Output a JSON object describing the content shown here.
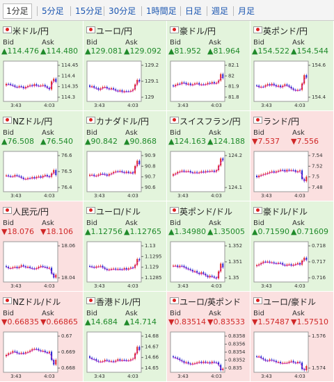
{
  "tabs": [
    "1分足",
    "5分足",
    "15分足",
    "30分足",
    "1時間足",
    "日足",
    "週足",
    "月足"
  ],
  "bid_label": "Bid",
  "ask_label": "Ask",
  "time_labels": [
    "3:43",
    "4:03"
  ],
  "pairs": [
    {
      "name": "米ドル/円",
      "trend": "up",
      "bid": "▲114.476",
      "ask": "▲114.480",
      "ticks": [
        "114.45",
        "114.4",
        "114.35",
        "114.3"
      ]
    },
    {
      "name": "ユーロ/円",
      "trend": "up",
      "bid": "▲129.081",
      "ask": "▲129.092",
      "ticks": [
        "129.2",
        "129.1",
        "129"
      ]
    },
    {
      "name": "豪ドル/円",
      "trend": "up",
      "bid": "▲81.952",
      "ask": "▲81.964",
      "ticks": [
        "82.1",
        "82",
        "81.9",
        "81.8"
      ]
    },
    {
      "name": "英ポンド/円",
      "trend": "up",
      "bid": "▲154.522",
      "ask": "▲154.544",
      "ticks": [
        "154.6",
        "154.4"
      ]
    },
    {
      "name": "NZドル/円",
      "trend": "up",
      "bid": "▲76.508",
      "ask": "▲76.540",
      "ticks": [
        "76.6",
        "76.5",
        "76.4"
      ]
    },
    {
      "name": "カナダドル/円",
      "trend": "up",
      "bid": "▲90.842",
      "ask": "▲90.868",
      "ticks": [
        "90.9",
        "90.8",
        "90.7",
        "90.6"
      ]
    },
    {
      "name": "スイスフラン/円",
      "trend": "up",
      "bid": "▲124.163",
      "ask": "▲124.188",
      "ticks": [
        "124.2",
        "124.1"
      ]
    },
    {
      "name": "ランド/円",
      "trend": "down",
      "bid": "▼7.537",
      "ask": "▼7.556",
      "ticks": [
        "7.54",
        "7.52",
        "7.5",
        "7.48"
      ]
    },
    {
      "name": "人民元/円",
      "trend": "down",
      "bid": "▼18.076",
      "ask": "▼18.106",
      "ticks": [
        "18.06",
        "18.04"
      ]
    },
    {
      "name": "ユーロ/ドル",
      "trend": "up",
      "bid": "▲1.12756",
      "ask": "▲1.12765",
      "ticks": [
        "1.13",
        "1.1295",
        "1.129",
        "1.1285"
      ]
    },
    {
      "name": "英ポンド/ドル",
      "trend": "up",
      "bid": "▲1.34980",
      "ask": "▲1.35005",
      "ticks": [
        "1.352",
        "1.351",
        "1.35"
      ]
    },
    {
      "name": "豪ドル/ドル",
      "trend": "up",
      "bid": "▲0.71590",
      "ask": "▲0.71609",
      "ticks": [
        "0.718",
        "0.717",
        "0.716"
      ]
    },
    {
      "name": "NZドル/ドル",
      "trend": "down",
      "bid": "▼0.66835",
      "ask": "▼0.66865",
      "ticks": [
        "0.67",
        "0.669",
        "0.668"
      ]
    },
    {
      "name": "香港ドル/円",
      "trend": "up",
      "bid": "▲14.684",
      "ask": "▲14.714",
      "ticks": [
        "14.68",
        "14.67",
        "14.66",
        "14.65"
      ]
    },
    {
      "name": "ユーロ/英ポンド",
      "trend": "down",
      "bid": "▼0.83514",
      "ask": "▼0.83533",
      "ticks": [
        "0.8358",
        "0.8356",
        "0.8354",
        "0.8352",
        "0.835"
      ]
    },
    {
      "name": "ユーロ/豪ドル",
      "trend": "down",
      "bid": "▼1.57487",
      "ask": "▼1.57510",
      "ticks": [
        "1.576",
        "1.574"
      ]
    }
  ]
}
